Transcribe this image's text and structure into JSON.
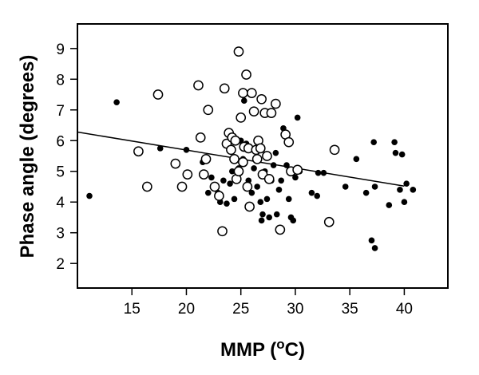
{
  "chart_data": {
    "type": "scatter",
    "title": "",
    "xlabel_main": "MMP (",
    "xlabel_sup": "o",
    "xlabel_end": "C)",
    "ylabel": "Phase angle (degrees)",
    "xlim": [
      10,
      44
    ],
    "ylim": [
      1.2,
      9.8
    ],
    "xticks": [
      15,
      20,
      25,
      30,
      35,
      40
    ],
    "yticks": [
      2,
      3,
      4,
      5,
      6,
      7,
      8,
      9
    ],
    "grid": false,
    "colors": {
      "filled": "#000000",
      "open_fill": "#ffffff",
      "stroke": "#000000"
    },
    "regression_line": {
      "x": [
        10,
        40
      ],
      "y": [
        6.28,
        4.52
      ]
    },
    "series": [
      {
        "marker": "filled-circle",
        "points": [
          [
            11.1,
            4.2
          ],
          [
            13.6,
            7.25
          ],
          [
            17.6,
            5.75
          ],
          [
            20.0,
            5.7
          ],
          [
            21.5,
            5.3
          ],
          [
            22.0,
            4.3
          ],
          [
            22.3,
            4.8
          ],
          [
            22.7,
            4.5
          ],
          [
            22.9,
            4.3
          ],
          [
            23.1,
            4.0
          ],
          [
            23.4,
            4.7
          ],
          [
            23.7,
            3.95
          ],
          [
            24.0,
            4.6
          ],
          [
            24.2,
            5.0
          ],
          [
            24.4,
            4.1
          ],
          [
            24.6,
            4.8
          ],
          [
            24.8,
            5.1
          ],
          [
            25.0,
            6.0
          ],
          [
            25.2,
            5.4
          ],
          [
            25.3,
            7.3
          ],
          [
            25.5,
            5.9
          ],
          [
            25.7,
            4.7
          ],
          [
            26.0,
            4.3
          ],
          [
            26.2,
            5.1
          ],
          [
            26.5,
            4.5
          ],
          [
            26.8,
            4.0
          ],
          [
            26.9,
            3.4
          ],
          [
            27.0,
            3.6
          ],
          [
            27.2,
            5.0
          ],
          [
            27.4,
            4.1
          ],
          [
            27.6,
            3.5
          ],
          [
            27.8,
            4.7
          ],
          [
            28.0,
            5.2
          ],
          [
            28.2,
            5.6
          ],
          [
            28.3,
            3.6
          ],
          [
            28.5,
            4.4
          ],
          [
            28.7,
            4.7
          ],
          [
            28.9,
            6.4
          ],
          [
            29.2,
            5.2
          ],
          [
            29.4,
            4.1
          ],
          [
            29.6,
            3.5
          ],
          [
            29.8,
            3.4
          ],
          [
            30.0,
            4.8
          ],
          [
            30.2,
            6.75
          ],
          [
            30.4,
            5.0
          ],
          [
            31.5,
            4.3
          ],
          [
            32.0,
            4.2
          ],
          [
            32.1,
            4.95
          ],
          [
            32.6,
            4.95
          ],
          [
            33.0,
            3.4
          ],
          [
            34.6,
            4.5
          ],
          [
            35.6,
            5.4
          ],
          [
            36.5,
            4.3
          ],
          [
            37.0,
            2.75
          ],
          [
            37.2,
            5.95
          ],
          [
            37.3,
            2.5
          ],
          [
            37.3,
            4.5
          ],
          [
            38.6,
            3.9
          ],
          [
            39.1,
            5.95
          ],
          [
            39.2,
            5.6
          ],
          [
            39.6,
            4.4
          ],
          [
            39.8,
            5.55
          ],
          [
            40.0,
            4.0
          ],
          [
            40.2,
            4.6
          ],
          [
            40.8,
            4.4
          ]
        ]
      },
      {
        "marker": "open-circle",
        "points": [
          [
            15.6,
            5.65
          ],
          [
            16.4,
            4.5
          ],
          [
            17.4,
            7.5
          ],
          [
            19.0,
            5.25
          ],
          [
            19.6,
            4.5
          ],
          [
            20.1,
            4.9
          ],
          [
            21.1,
            7.8
          ],
          [
            21.3,
            6.1
          ],
          [
            21.6,
            4.9
          ],
          [
            21.8,
            5.4
          ],
          [
            22.0,
            7.0
          ],
          [
            22.6,
            4.5
          ],
          [
            23.0,
            4.2
          ],
          [
            23.3,
            3.05
          ],
          [
            23.5,
            7.7
          ],
          [
            23.7,
            5.9
          ],
          [
            23.9,
            6.25
          ],
          [
            24.1,
            5.7
          ],
          [
            24.2,
            6.1
          ],
          [
            24.4,
            5.4
          ],
          [
            24.5,
            6.0
          ],
          [
            24.6,
            4.75
          ],
          [
            24.8,
            8.9
          ],
          [
            24.8,
            5.0
          ],
          [
            25.0,
            6.75
          ],
          [
            25.2,
            7.55
          ],
          [
            25.2,
            5.3
          ],
          [
            25.3,
            5.8
          ],
          [
            25.5,
            8.15
          ],
          [
            25.6,
            4.5
          ],
          [
            25.7,
            5.75
          ],
          [
            25.8,
            3.85
          ],
          [
            26.0,
            7.55
          ],
          [
            26.2,
            6.95
          ],
          [
            26.4,
            5.7
          ],
          [
            26.5,
            5.4
          ],
          [
            26.6,
            6.0
          ],
          [
            26.8,
            5.75
          ],
          [
            26.9,
            7.35
          ],
          [
            27.0,
            4.9
          ],
          [
            27.2,
            6.9
          ],
          [
            27.4,
            5.5
          ],
          [
            27.6,
            4.75
          ],
          [
            27.8,
            6.9
          ],
          [
            28.2,
            7.2
          ],
          [
            28.6,
            3.1
          ],
          [
            29.1,
            6.2
          ],
          [
            29.4,
            5.95
          ],
          [
            29.6,
            5.0
          ],
          [
            30.2,
            5.05
          ],
          [
            33.1,
            3.35
          ],
          [
            33.6,
            5.7
          ]
        ]
      }
    ]
  }
}
